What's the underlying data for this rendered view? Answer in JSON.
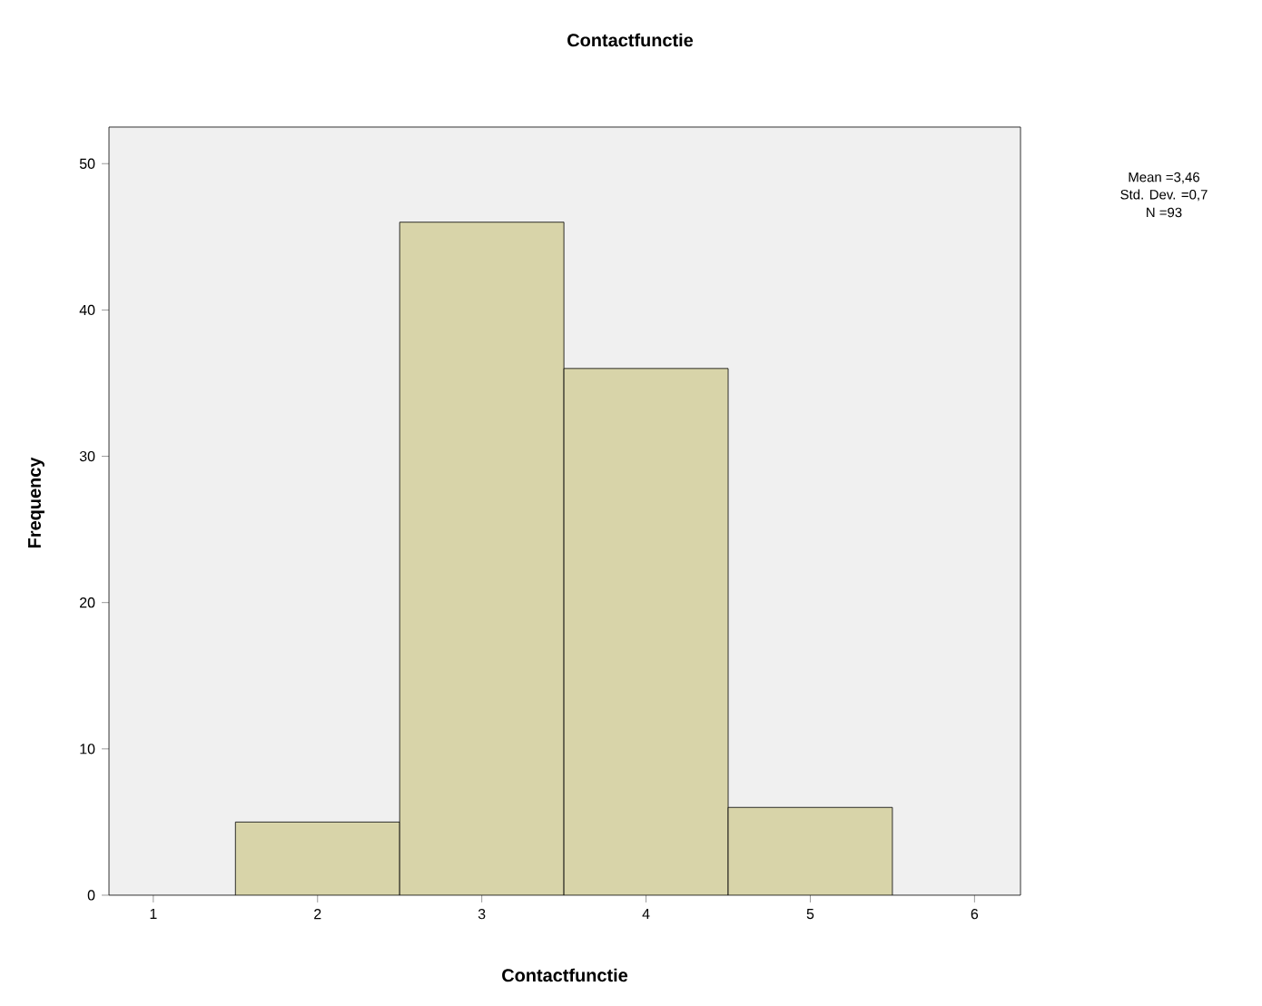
{
  "chart_data": {
    "type": "histogram",
    "title": "Contactfunctie",
    "xlabel": "Contactfunctie",
    "ylabel": "Frequency",
    "bins": [
      1.5,
      2.5,
      3.5,
      4.5,
      5.5
    ],
    "values": [
      5,
      46,
      36,
      6
    ],
    "color": "#d8d4a9",
    "xlim": [
      0.73,
      6.28
    ],
    "ylim": [
      0,
      52.5
    ],
    "xticks": [
      1,
      2,
      3,
      4,
      5,
      6
    ],
    "yticks": [
      0,
      10,
      20,
      30,
      40,
      50
    ],
    "annotations": [
      "Mean =3,46",
      "Std. Dev. =0,7",
      "N =93"
    ]
  }
}
